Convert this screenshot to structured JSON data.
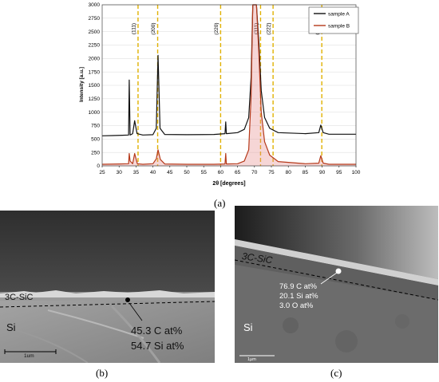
{
  "chart_data": {
    "type": "line",
    "ylabel": "Intensity [a.u.]",
    "xlabel": "2θ [degrees]",
    "xlim": [
      25,
      100
    ],
    "ylim": [
      0,
      3000
    ],
    "x_ticks": [
      25,
      30,
      35,
      40,
      45,
      50,
      55,
      60,
      65,
      70,
      75,
      80,
      85,
      90,
      95,
      100
    ],
    "y_ticks": [
      0,
      250,
      500,
      750,
      1000,
      1250,
      1500,
      1750,
      2000,
      2250,
      2500,
      2750,
      3000
    ],
    "legend_position": "top-right",
    "reference_lines": [
      {
        "x": 35.6,
        "label": "(111)"
      },
      {
        "x": 41.4,
        "label": "(200)"
      },
      {
        "x": 60.0,
        "label": "(220)"
      },
      {
        "x": 71.8,
        "label": "(311)"
      },
      {
        "x": 75.5,
        "label": "(222)"
      },
      {
        "x": 89.9,
        "label": "(400)"
      }
    ],
    "series": [
      {
        "name": "sample A",
        "color": "#111111",
        "points": [
          [
            25,
            560
          ],
          [
            28,
            565
          ],
          [
            31,
            570
          ],
          [
            32.8,
            575
          ],
          [
            33.0,
            1600
          ],
          [
            33.25,
            575
          ],
          [
            34.0,
            600
          ],
          [
            34.6,
            840
          ],
          [
            35.3,
            600
          ],
          [
            37,
            575
          ],
          [
            40,
            580
          ],
          [
            41.0,
            700
          ],
          [
            41.5,
            2060
          ],
          [
            42.1,
            700
          ],
          [
            43.5,
            585
          ],
          [
            50,
            580
          ],
          [
            58,
            585
          ],
          [
            61.3,
            600
          ],
          [
            61.5,
            820
          ],
          [
            61.7,
            600
          ],
          [
            65,
            620
          ],
          [
            67,
            680
          ],
          [
            68.3,
            900
          ],
          [
            69.0,
            1650
          ],
          [
            69.5,
            3000
          ],
          [
            70.6,
            3000
          ],
          [
            71.3,
            2300
          ],
          [
            72.0,
            1400
          ],
          [
            73.0,
            900
          ],
          [
            74.5,
            700
          ],
          [
            77,
            620
          ],
          [
            85,
            600
          ],
          [
            89.0,
            620
          ],
          [
            89.6,
            760
          ],
          [
            90.3,
            620
          ],
          [
            92,
            590
          ],
          [
            100,
            590
          ]
        ]
      },
      {
        "name": "sample B",
        "color": "#b5391a",
        "points": [
          [
            25,
            30
          ],
          [
            30,
            35
          ],
          [
            32.8,
            40
          ],
          [
            33.0,
            230
          ],
          [
            33.25,
            90
          ],
          [
            34.0,
            40
          ],
          [
            34.6,
            230
          ],
          [
            35.4,
            40
          ],
          [
            37,
            30
          ],
          [
            40,
            40
          ],
          [
            41.0,
            130
          ],
          [
            41.5,
            300
          ],
          [
            42.2,
            120
          ],
          [
            43.5,
            35
          ],
          [
            50,
            30
          ],
          [
            58,
            30
          ],
          [
            61.3,
            35
          ],
          [
            61.5,
            230
          ],
          [
            61.7,
            35
          ],
          [
            65,
            40
          ],
          [
            67,
            90
          ],
          [
            68.3,
            300
          ],
          [
            69.0,
            1300
          ],
          [
            69.5,
            3000
          ],
          [
            70.6,
            3000
          ],
          [
            71.3,
            2100
          ],
          [
            72.0,
            1000
          ],
          [
            73.0,
            450
          ],
          [
            74.5,
            200
          ],
          [
            77,
            80
          ],
          [
            85,
            40
          ],
          [
            89.0,
            50
          ],
          [
            89.6,
            190
          ],
          [
            90.3,
            50
          ],
          [
            92,
            30
          ],
          [
            100,
            30
          ]
        ]
      }
    ]
  },
  "panel_labels": {
    "a": "(a)",
    "b": "(b)",
    "c": "(c)"
  },
  "sem_b": {
    "layer_label": "3C-SiC",
    "substrate_label": "Si",
    "composition_1": "45.3 C at%",
    "composition_2": "54.7 Si at%",
    "scale_label": "1um"
  },
  "sem_c": {
    "layer_label": "3C-SiC",
    "substrate_label": "Si",
    "composition_1": "76.9 C at%",
    "composition_2": "20.1 Si at%",
    "composition_3": "3.0 O at%",
    "scale_label": "1µm"
  }
}
